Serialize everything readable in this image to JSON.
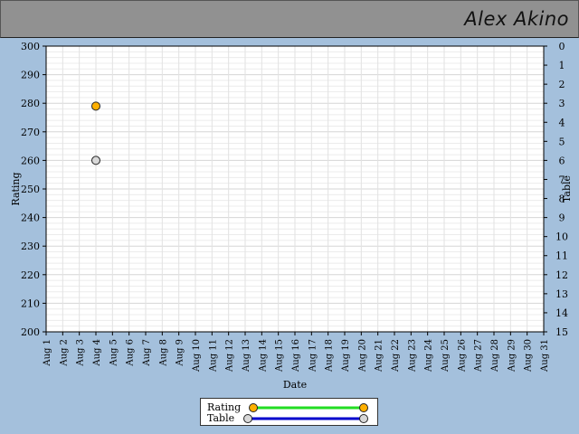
{
  "header": {
    "player_name": "Alex Akino"
  },
  "chart_data": {
    "type": "scatter",
    "title": "",
    "xlabel": "Date",
    "ylabel_left": "Rating",
    "ylabel_right": "Table",
    "categories": [
      "Aug 1",
      "Aug 2",
      "Aug 3",
      "Aug 4",
      "Aug 5",
      "Aug 6",
      "Aug 7",
      "Aug 8",
      "Aug 9",
      "Aug 10",
      "Aug 11",
      "Aug 12",
      "Aug 13",
      "Aug 14",
      "Aug 15",
      "Aug 16",
      "Aug 17",
      "Aug 18",
      "Aug 19",
      "Aug 20",
      "Aug 21",
      "Aug 22",
      "Aug 23",
      "Aug 24",
      "Aug 25",
      "Aug 26",
      "Aug 27",
      "Aug 28",
      "Aug 29",
      "Aug 30",
      "Aug 31"
    ],
    "ylim_left": [
      200,
      300
    ],
    "yticks_left": [
      200,
      210,
      220,
      230,
      240,
      250,
      260,
      270,
      280,
      290,
      300
    ],
    "ylim_right": [
      0,
      15
    ],
    "yticks_right": [
      0,
      1,
      2,
      3,
      4,
      5,
      6,
      7,
      8,
      9,
      10,
      11,
      12,
      13,
      14,
      15
    ],
    "right_axis_inverted": true,
    "grid": true,
    "legend_position": "bottom-center",
    "series": [
      {
        "name": "Rating",
        "axis": "left",
        "color": "#ffb000",
        "line_color": "#22dd22",
        "points": [
          {
            "x": "Aug 4",
            "y": 279
          }
        ]
      },
      {
        "name": "Table",
        "axis": "right",
        "color": "#d8d8d8",
        "line_color": "#0000cc",
        "points": [
          {
            "x": "Aug 4",
            "y": 6
          }
        ]
      }
    ]
  }
}
